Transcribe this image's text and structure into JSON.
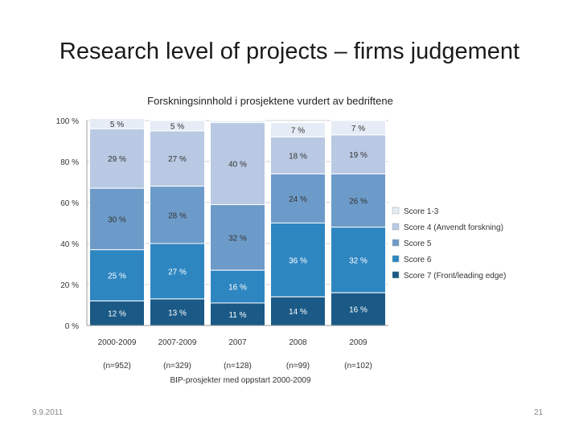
{
  "slide": {
    "title": "Research level of projects – firms judgement",
    "footer_date": "9.9.2011",
    "page_number": "21"
  },
  "chart_data": {
    "type": "bar",
    "stacked": true,
    "title": "Forskningsinnhold i prosjektene vurdert av bedriftene",
    "xlabel": "BIP-prosjekter med oppstart 2000-2009",
    "ylabel": "",
    "ylim": [
      0,
      100
    ],
    "y_ticks": [
      "0 %",
      "20 %",
      "40 %",
      "60 %",
      "80 %",
      "100 %"
    ],
    "categories": [
      "2000-2009",
      "2007-2009",
      "2007",
      "2008",
      "2009"
    ],
    "sample_sizes": [
      "(n=952)",
      "(n=329)",
      "(n=128)",
      "(n=99)",
      "(n=102)"
    ],
    "legend_position": "right",
    "series": [
      {
        "name": "Score 7 (Front/leading edge)",
        "color": "#1b5a86",
        "values": [
          12,
          13,
          11,
          14,
          16
        ],
        "labels": [
          "12 %",
          "13 %",
          "11 %",
          "14 %",
          "16 %"
        ]
      },
      {
        "name": "Score 6",
        "color": "#2e86c1",
        "values": [
          25,
          27,
          16,
          36,
          32
        ],
        "labels": [
          "25 %",
          "27 %",
          "16 %",
          "36 %",
          "32 %"
        ]
      },
      {
        "name": "Score 5",
        "color": "#6d9bc9",
        "values": [
          30,
          28,
          32,
          24,
          26
        ],
        "labels": [
          "30 %",
          "28 %",
          "32 %",
          "24 %",
          "26 %"
        ]
      },
      {
        "name": "Score 4 (Anvendt forskning)",
        "color": "#b9c9e3",
        "values": [
          29,
          27,
          40,
          18,
          19
        ],
        "labels": [
          "29 %",
          "27 %",
          "40 %",
          "18 %",
          "19 %"
        ]
      },
      {
        "name": "Score 1-3",
        "color": "#e6ecf6",
        "values": [
          5,
          5,
          1,
          7,
          7
        ],
        "labels": [
          "5 %",
          "5 %",
          "",
          "7 %",
          "7 %"
        ]
      }
    ]
  }
}
